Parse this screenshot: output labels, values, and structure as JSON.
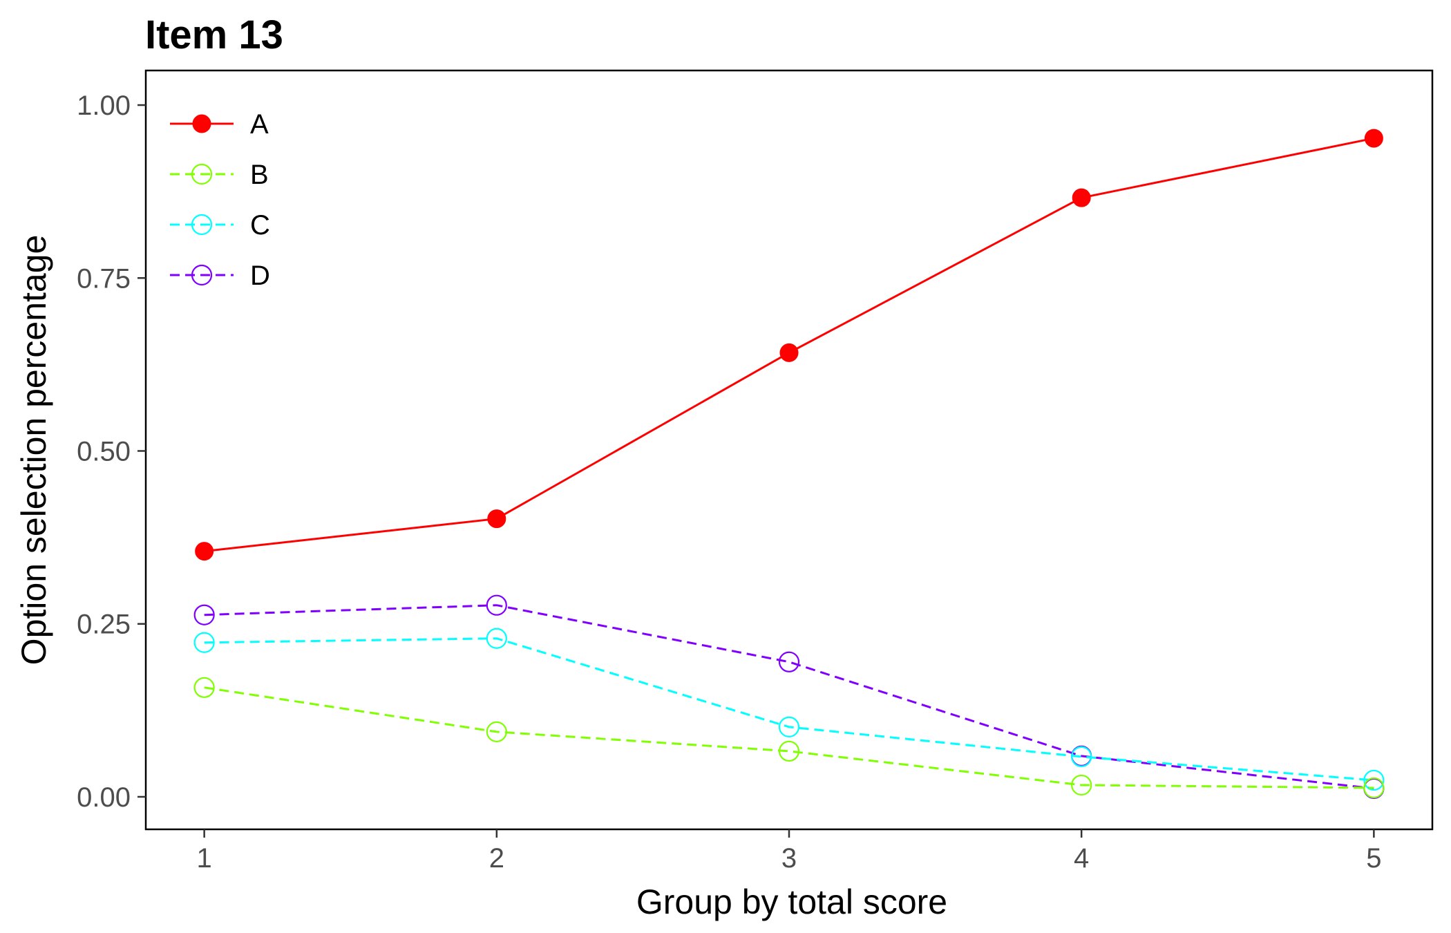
{
  "chart_data": {
    "type": "line",
    "title": "Item 13",
    "xlabel": "Group by total score",
    "ylabel": "Option selection percentage",
    "x": [
      1,
      2,
      3,
      4,
      5
    ],
    "x_ticks": [
      "1",
      "2",
      "3",
      "4",
      "5"
    ],
    "xlim": [
      0.8,
      5.2
    ],
    "ylim": [
      -0.047,
      1.05
    ],
    "y_ticks": [
      0,
      0.25,
      0.5,
      0.75,
      1
    ],
    "y_tick_labels": [
      "0.00",
      "0.25",
      "0.50",
      "0.75",
      "1.00"
    ],
    "grid": false,
    "legend_position": "top-left",
    "series": [
      {
        "name": "A",
        "values": [
          0.355,
          0.402,
          0.642,
          0.866,
          0.952
        ],
        "color": "#ff0000",
        "line": "solid",
        "marker": "filled-circle"
      },
      {
        "name": "B",
        "values": [
          0.158,
          0.094,
          0.066,
          0.017,
          0.013
        ],
        "color": "#80ff00",
        "line": "dashed",
        "marker": "open-circle"
      },
      {
        "name": "C",
        "values": [
          0.223,
          0.229,
          0.101,
          0.058,
          0.024
        ],
        "color": "#00ffff",
        "line": "dashed",
        "marker": "open-circle"
      },
      {
        "name": "D",
        "values": [
          0.263,
          0.277,
          0.195,
          0.059,
          0.012
        ],
        "color": "#8000ff",
        "line": "dashed",
        "marker": "open-circle"
      }
    ]
  }
}
